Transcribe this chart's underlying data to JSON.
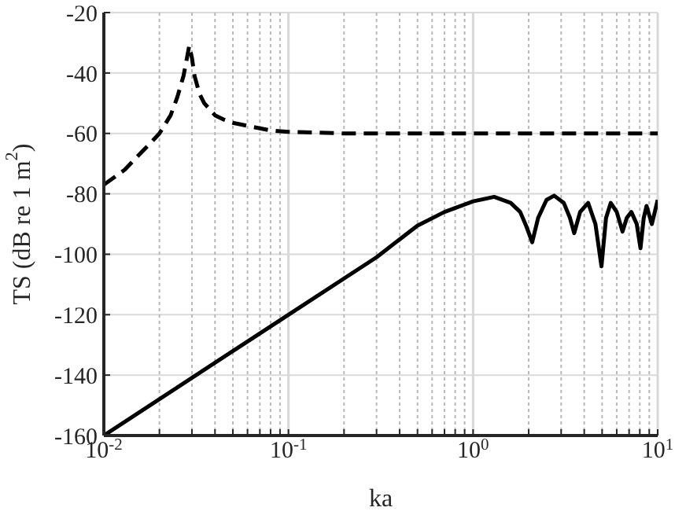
{
  "chart_data": {
    "type": "line",
    "xlabel": "ka",
    "ylabel": "TS (dB re 1 m$^{2}$)",
    "log": "x",
    "grid": true,
    "marker": "none",
    "xlim": [
      0.01,
      10
    ],
    "ylim": [
      -160,
      -20
    ],
    "xticks": [
      {
        "value": 0.01,
        "label": "10$^{-2}$"
      },
      {
        "value": 0.02,
        "label": null
      },
      {
        "value": 0.03,
        "label": null
      },
      {
        "value": 0.04,
        "label": null
      },
      {
        "value": 0.05,
        "label": null
      },
      {
        "value": 0.06,
        "label": null
      },
      {
        "value": 0.07,
        "label": null
      },
      {
        "value": 0.08,
        "label": null
      },
      {
        "value": 0.09,
        "label": null
      },
      {
        "value": 0.1,
        "label": "10$^{-1}$"
      },
      {
        "value": 0.2,
        "label": null
      },
      {
        "value": 0.3,
        "label": null
      },
      {
        "value": 0.4,
        "label": null
      },
      {
        "value": 0.5,
        "label": null
      },
      {
        "value": 0.6,
        "label": null
      },
      {
        "value": 0.7,
        "label": null
      },
      {
        "value": 0.8,
        "label": null
      },
      {
        "value": 0.9,
        "label": null
      },
      {
        "value": 1,
        "label": "10$^{0}$"
      },
      {
        "value": 2,
        "label": null
      },
      {
        "value": 3,
        "label": null
      },
      {
        "value": 4,
        "label": null
      },
      {
        "value": 5,
        "label": null
      },
      {
        "value": 6,
        "label": null
      },
      {
        "value": 7,
        "label": null
      },
      {
        "value": 8,
        "label": null
      },
      {
        "value": 9,
        "label": null
      },
      {
        "value": 10,
        "label": "10$^{1}$"
      }
    ],
    "yticks": [
      -160,
      -140,
      -120,
      -100,
      -80,
      -60,
      -40,
      -20
    ],
    "series": [
      {
        "color": "#000000",
        "line_style": "dashed",
        "x": [
          0.01,
          0.013,
          0.015,
          0.018,
          0.02,
          0.023,
          0.025,
          0.027,
          0.028,
          0.029,
          0.03,
          0.031,
          0.033,
          0.035,
          0.04,
          0.045,
          0.05,
          0.06,
          0.08,
          0.1,
          0.2,
          0.5,
          1,
          2,
          5,
          10
        ],
        "values": [
          -77,
          -72,
          -68,
          -63,
          -60,
          -54,
          -48,
          -41,
          -36,
          -31,
          -35,
          -41,
          -47,
          -50,
          -54,
          -55.5,
          -56.5,
          -57.5,
          -59,
          -59.5,
          -60,
          -60,
          -60,
          -60,
          -60,
          -60
        ]
      },
      {
        "color": "#000000",
        "line_style": "solid",
        "x": [
          0.01,
          0.1,
          0.3,
          0.5,
          0.7,
          1,
          1.3,
          1.6,
          1.8,
          1.95,
          2.09,
          2.25,
          2.5,
          2.75,
          3.1,
          3.35,
          3.53,
          3.8,
          4.2,
          4.6,
          4.96,
          5.25,
          5.57,
          6,
          6.45,
          6.8,
          7.2,
          7.7,
          8.07,
          8.4,
          8.7,
          9.3,
          10
        ],
        "values": [
          -160,
          -120,
          -101,
          -90.5,
          -86,
          -82.5,
          -81,
          -83,
          -86,
          -91,
          -96,
          -88,
          -82,
          -80.6,
          -83,
          -88,
          -93,
          -86,
          -83,
          -90,
          -104,
          -88,
          -83,
          -86,
          -92.5,
          -88,
          -86,
          -90,
          -98,
          -88,
          -84,
          -90,
          -82
        ]
      }
    ]
  }
}
